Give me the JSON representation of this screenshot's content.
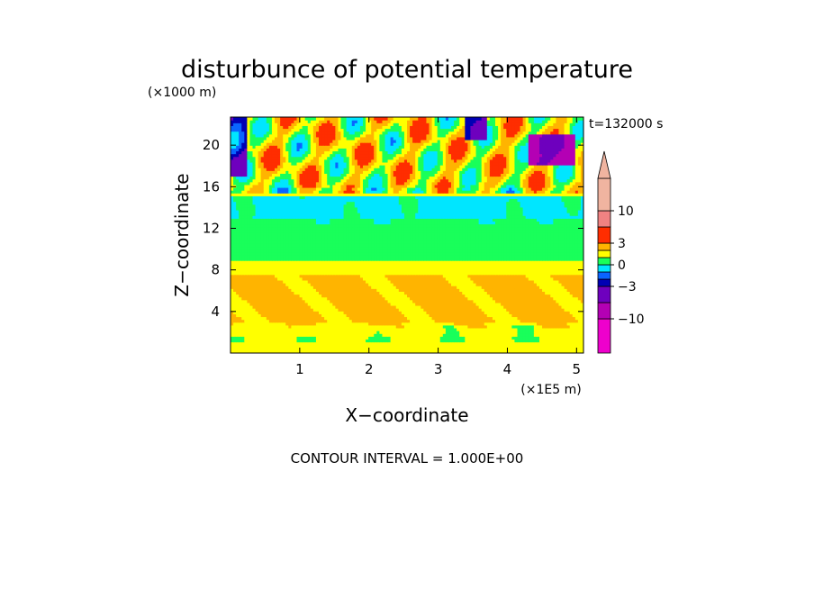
{
  "chart_data": {
    "type": "heatmap",
    "title": "disturbunce of potential temperature",
    "time_label": "t=132000 s",
    "xlabel": "X−coordinate",
    "ylabel": "Z−coordinate",
    "x_unit": "(×1E5 m)",
    "y_unit": "(×1000 m)",
    "xlim": [
      0,
      5.1
    ],
    "ylim": [
      0,
      22.7
    ],
    "x_ticks": [
      1,
      2,
      3,
      4,
      5
    ],
    "y_ticks": [
      4,
      8,
      12,
      16,
      20
    ],
    "footer": "CONTOUR INTERVAL = 1.000E+00",
    "contour_interval": 1.0,
    "colorbar": {
      "labeled_values": [
        10,
        3,
        0,
        -3,
        -10
      ],
      "labels": [
        "10",
        "3",
        "0",
        "−3",
        "−10"
      ],
      "bins": [
        {
          "range": [
            -20,
            -10
          ],
          "color": "#ee00cc"
        },
        {
          "range": [
            -10,
            -6
          ],
          "color": "#b400b4"
        },
        {
          "range": [
            -6,
            -3
          ],
          "color": "#6e00be"
        },
        {
          "range": [
            -3,
            -2
          ],
          "color": "#0000b4"
        },
        {
          "range": [
            -2,
            -1
          ],
          "color": "#0a64ff"
        },
        {
          "range": [
            -1,
            0
          ],
          "color": "#00e6ff"
        },
        {
          "range": [
            0,
            1
          ],
          "color": "#19ff5a"
        },
        {
          "range": [
            1,
            2
          ],
          "color": "#ffff00"
        },
        {
          "range": [
            2,
            3
          ],
          "color": "#ffb400"
        },
        {
          "range": [
            3,
            6
          ],
          "color": "#ff2d00"
        },
        {
          "range": [
            6,
            10
          ],
          "color": "#f08282"
        },
        {
          "range": [
            10,
            20
          ],
          "color": "#f0b4a0"
        }
      ],
      "overflow_arrow": "top"
    },
    "field_description": "horizontal layers of potential-temperature disturbance: warm (yellow/orange) below ~9 km, near-zero (green/cyan) 9-15 km, alternating warm (red/orange) and cold (blue/purple) cells above 15 km"
  }
}
